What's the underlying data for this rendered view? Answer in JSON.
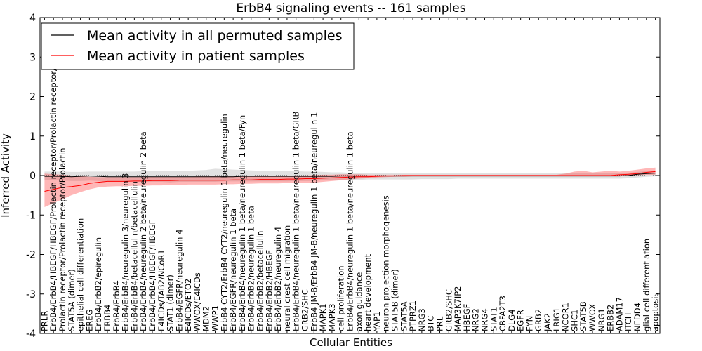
{
  "chart_data": {
    "type": "line",
    "title": "ErbB4 signaling events -- 161 samples",
    "xlabel": "Cellular Entities",
    "ylabel": "Inferred Activity",
    "ylim": [
      -4,
      4
    ],
    "yticks": [
      -4,
      -3,
      -2,
      -1,
      0,
      1,
      2,
      3,
      4
    ],
    "legend_position": "top-left",
    "categories": [
      "PRLR",
      "ErbB4/ErbB4/HBEGF/HBEGF/Prolactin receptor/Prolactin receptor/Prolactin",
      "Prolactin receptor/Prolactin receptor/Prolactin",
      "STAT5A (dimer)",
      "epithelial cell differentiation",
      "EREG",
      "ErbB4/ErbB2/epiregulin",
      "ERBB4",
      "ErbB4/ErbB4",
      "ErbB4/ErbB4/neuregulin 3/neuregulin 3",
      "ErbB4/ErbB4/betacellulin/betacellulin",
      "ErbB4/ErbB4/neuregulin 2 beta/neuregulin 2 beta",
      "ErbB4/ErbB4/HBEGF/HBEGF",
      "E4ICDs/TAB2/NCoR1",
      "STAT1 (dimer)",
      "ErbB4/EGFR/neuregulin 4",
      "E4ICDs/ETO2",
      "WWOX/E4ICDs",
      "MDM2",
      "WWP1",
      "ErbB4 CYT2/ErbB4 CYT2/neuregulin 1 beta/neuregulin",
      "ErbB4/EGFR/neuregulin 1 beta",
      "ErbB4/ErbB4/neuregulin 1 beta/neuregulin 1 beta/Fyn",
      "ErbB4/ErbB2/neuregulin 1 beta",
      "ErbB4/ErbB2/betacellulin",
      "ErbB4/ErbB2/HBEGF",
      "ErbB4/ErbB2/neuregulin 4",
      "neural crest cell migration",
      "ErbB4/ErbB4/neuregulin 1 beta/neuregulin 1 beta/GRB",
      "GRB2/SHC",
      "ErbB4 JM-B/ErbB4 JM-B/neuregulin 1 beta/neuregulin 1",
      "MAPK1",
      "MAPK3",
      "cell proliferation",
      "ErbB4/ErbB4/neuregulin 1 beta/neuregulin 1 beta",
      "axon guidance",
      "heart development",
      "YAP1",
      "neuron projection morphogenesis",
      "STAT5B (dimer)",
      "STAT5A",
      "PTPRZ1",
      "NRG3",
      "BTC",
      "PRL",
      "GRB2/SHC",
      "MAP3K7IP2",
      "HBEGF",
      "NRG2",
      "NRG4",
      "STAT1",
      "CBFA2T3",
      "DLG4",
      "EGFR",
      "FYN",
      "GRB2",
      "JAK2",
      "LRIG1",
      "NCOR1",
      "SHC1",
      "STAT5B",
      "WWOX",
      "NRG1",
      "ERBB2",
      "ADAM17",
      "ITCH",
      "NEDD4",
      "glial cell differentiation",
      "apoptosis"
    ],
    "series": [
      {
        "name": "Mean activity in all permuted samples",
        "color": "#000000",
        "values": [
          -0.02,
          -0.02,
          -0.02,
          -0.03,
          -0.02,
          -0.01,
          -0.02,
          -0.03,
          -0.03,
          -0.03,
          -0.03,
          -0.03,
          -0.03,
          -0.03,
          -0.03,
          -0.03,
          -0.03,
          -0.03,
          -0.03,
          -0.03,
          -0.03,
          -0.03,
          -0.02,
          -0.02,
          -0.02,
          -0.02,
          -0.02,
          -0.02,
          -0.02,
          -0.02,
          -0.02,
          -0.02,
          -0.02,
          -0.01,
          -0.01,
          -0.01,
          -0.01,
          -0.01,
          -0.01,
          -0.01,
          -0.01,
          -0.01,
          -0.01,
          -0.01,
          -0.01,
          -0.01,
          -0.01,
          -0.01,
          -0.01,
          -0.01,
          -0.01,
          -0.01,
          -0.01,
          -0.01,
          -0.01,
          -0.01,
          -0.01,
          -0.01,
          -0.01,
          -0.01,
          -0.01,
          -0.01,
          -0.01,
          -0.01,
          -0.01,
          0.0,
          0.03,
          0.05,
          0.06
        ],
        "band_low": [
          -0.12,
          -0.12,
          -0.13,
          -0.14,
          -0.14,
          -0.13,
          -0.14,
          -0.15,
          -0.15,
          -0.15,
          -0.16,
          -0.16,
          -0.16,
          -0.16,
          -0.17,
          -0.16,
          -0.16,
          -0.16,
          -0.16,
          -0.16,
          -0.15,
          -0.15,
          -0.15,
          -0.15,
          -0.15,
          -0.15,
          -0.15,
          -0.15,
          -0.14,
          -0.14,
          -0.14,
          -0.12,
          -0.12,
          -0.11,
          -0.11,
          -0.11,
          -0.1,
          -0.1,
          -0.1,
          -0.1,
          -0.1,
          -0.1,
          -0.09,
          -0.09,
          -0.09,
          -0.09,
          -0.08,
          -0.08,
          -0.08,
          -0.08,
          -0.08,
          -0.08,
          -0.08,
          -0.08,
          -0.08,
          -0.08,
          -0.08,
          -0.08,
          -0.08,
          -0.08,
          -0.08,
          -0.08,
          -0.08,
          -0.08,
          -0.08,
          -0.07,
          -0.05,
          -0.03,
          -0.02
        ],
        "band_high": [
          0.1,
          0.1,
          0.1,
          0.09,
          0.09,
          0.1,
          0.1,
          0.1,
          0.1,
          0.1,
          0.1,
          0.11,
          0.11,
          0.12,
          0.12,
          0.12,
          0.12,
          0.13,
          0.14,
          0.17,
          0.16,
          0.15,
          0.14,
          0.13,
          0.12,
          0.12,
          0.11,
          0.11,
          0.11,
          0.1,
          0.1,
          0.09,
          0.08,
          0.08,
          0.07,
          0.07,
          0.07,
          0.07,
          0.07,
          0.07,
          0.07,
          0.06,
          0.06,
          0.06,
          0.06,
          0.06,
          0.06,
          0.06,
          0.06,
          0.06,
          0.06,
          0.06,
          0.06,
          0.06,
          0.06,
          0.06,
          0.06,
          0.06,
          0.06,
          0.06,
          0.06,
          0.06,
          0.06,
          0.06,
          0.06,
          0.07,
          0.09,
          0.11,
          0.12
        ]
      },
      {
        "name": "Mean activity in patient samples",
        "color": "#ff0000",
        "values": [
          -0.4,
          -0.35,
          -0.3,
          -0.28,
          -0.25,
          -0.2,
          -0.17,
          -0.15,
          -0.15,
          -0.15,
          -0.14,
          -0.14,
          -0.13,
          -0.13,
          -0.13,
          -0.12,
          -0.12,
          -0.12,
          -0.12,
          -0.12,
          -0.12,
          -0.11,
          -0.11,
          -0.11,
          -0.1,
          -0.1,
          -0.1,
          -0.09,
          -0.09,
          -0.08,
          -0.08,
          -0.07,
          -0.06,
          -0.05,
          -0.04,
          -0.03,
          -0.03,
          -0.02,
          -0.01,
          -0.01,
          0.0,
          0.0,
          0.0,
          0.0,
          0.0,
          0.0,
          0.0,
          0.0,
          0.0,
          0.0,
          0.0,
          0.0,
          0.0,
          0.0,
          0.0,
          0.0,
          0.0,
          0.0,
          0.0,
          0.0,
          0.0,
          0.0,
          0.0,
          0.0,
          0.02,
          0.03,
          0.05,
          0.08,
          0.1
        ],
        "band_low": [
          -0.8,
          -0.7,
          -0.6,
          -0.5,
          -0.42,
          -0.35,
          -0.3,
          -0.28,
          -0.27,
          -0.27,
          -0.26,
          -0.26,
          -0.25,
          -0.25,
          -0.24,
          -0.24,
          -0.23,
          -0.23,
          -0.23,
          -0.23,
          -0.22,
          -0.22,
          -0.21,
          -0.21,
          -0.2,
          -0.2,
          -0.2,
          -0.19,
          -0.19,
          -0.18,
          -0.18,
          -0.16,
          -0.14,
          -0.12,
          -0.1,
          -0.08,
          -0.07,
          -0.05,
          -0.04,
          -0.03,
          -0.03,
          -0.02,
          -0.02,
          -0.02,
          -0.02,
          -0.02,
          -0.02,
          -0.02,
          -0.02,
          -0.02,
          -0.02,
          -0.02,
          -0.02,
          -0.02,
          -0.02,
          -0.02,
          -0.02,
          -0.02,
          -0.02,
          -0.02,
          -0.02,
          -0.02,
          -0.02,
          -0.02,
          -0.01,
          0.0,
          0.01,
          0.02,
          0.02
        ],
        "band_high": [
          0.05,
          0.03,
          0.02,
          0.0,
          -0.02,
          -0.03,
          -0.04,
          -0.04,
          -0.04,
          -0.04,
          -0.04,
          -0.04,
          -0.03,
          -0.03,
          -0.03,
          -0.03,
          -0.03,
          -0.02,
          -0.02,
          -0.02,
          -0.02,
          -0.02,
          -0.02,
          -0.02,
          -0.01,
          -0.01,
          -0.01,
          -0.01,
          0.0,
          0.0,
          0.01,
          0.02,
          0.02,
          0.03,
          0.03,
          0.03,
          0.02,
          0.02,
          0.02,
          0.02,
          0.02,
          0.02,
          0.02,
          0.02,
          0.02,
          0.02,
          0.02,
          0.02,
          0.02,
          0.02,
          0.02,
          0.02,
          0.02,
          0.02,
          0.02,
          0.02,
          0.02,
          0.02,
          0.05,
          0.1,
          0.12,
          0.08,
          0.1,
          0.12,
          0.1,
          0.12,
          0.15,
          0.18,
          0.2
        ]
      }
    ]
  }
}
